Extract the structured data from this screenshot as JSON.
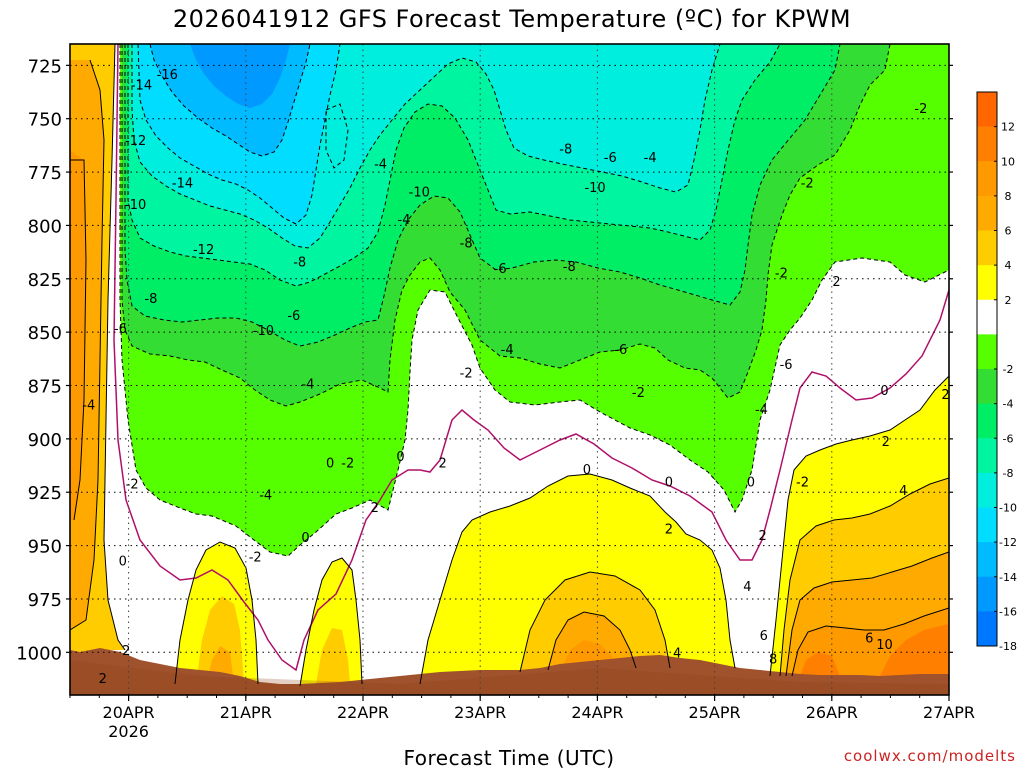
{
  "chart_data": {
    "type": "heatmap",
    "title": "2026041912 GFS Forecast Temperature (ºC) for KPWM",
    "xlabel": "Forecast Time (UTC)",
    "ylabel": "",
    "watermark": "coolwx.com/modelts",
    "x_range_days": [
      19.5,
      27.0
    ],
    "y_range_hpa": [
      715,
      1020
    ],
    "x_ticks": [
      {
        "day": 20,
        "label": "20APR",
        "sublabel": "2026"
      },
      {
        "day": 21,
        "label": "21APR",
        "sublabel": ""
      },
      {
        "day": 22,
        "label": "22APR",
        "sublabel": ""
      },
      {
        "day": 23,
        "label": "23APR",
        "sublabel": ""
      },
      {
        "day": 24,
        "label": "24APR",
        "sublabel": ""
      },
      {
        "day": 25,
        "label": "25APR",
        "sublabel": ""
      },
      {
        "day": 26,
        "label": "26APR",
        "sublabel": ""
      },
      {
        "day": 27,
        "label": "27APR",
        "sublabel": ""
      }
    ],
    "y_ticks": [
      725,
      750,
      775,
      800,
      825,
      850,
      875,
      900,
      925,
      950,
      975,
      1000
    ],
    "colorbar": {
      "labels": [
        "12",
        "10",
        "8",
        "6",
        "4",
        "2",
        "-2",
        "-4",
        "-6",
        "-8",
        "-10",
        "-12",
        "-14",
        "-16",
        "-18"
      ],
      "bands": [
        {
          "lo": 12,
          "hi": 14,
          "color": "#ff6600"
        },
        {
          "lo": 10,
          "hi": 12,
          "color": "#ff8000"
        },
        {
          "lo": 8,
          "hi": 10,
          "color": "#ff9900"
        },
        {
          "lo": 6,
          "hi": 8,
          "color": "#ffaa00"
        },
        {
          "lo": 4,
          "hi": 6,
          "color": "#ffcc00"
        },
        {
          "lo": 2,
          "hi": 4,
          "color": "#ffff00"
        },
        {
          "lo": -2,
          "hi": 2,
          "color": "#ffffff"
        },
        {
          "lo": -4,
          "hi": -2,
          "color": "#55ff00"
        },
        {
          "lo": -6,
          "hi": -4,
          "color": "#33dd33"
        },
        {
          "lo": -8,
          "hi": -6,
          "color": "#00ee66"
        },
        {
          "lo": -10,
          "hi": -8,
          "color": "#00f5a0"
        },
        {
          "lo": -12,
          "hi": -10,
          "color": "#00eedd"
        },
        {
          "lo": -14,
          "hi": -12,
          "color": "#00ddff"
        },
        {
          "lo": -16,
          "hi": -14,
          "color": "#00bbff"
        },
        {
          "lo": -18,
          "hi": -16,
          "color": "#0099ff"
        },
        {
          "lo": -20,
          "hi": -18,
          "color": "#0077ff"
        }
      ]
    },
    "contour_labels": [
      {
        "day": 19.78,
        "p": 1012,
        "v": "2"
      },
      {
        "day": 19.98,
        "p": 999,
        "v": "2"
      },
      {
        "day": 20.11,
        "p": 734,
        "v": "-14"
      },
      {
        "day": 20.33,
        "p": 729,
        "v": "-16"
      },
      {
        "day": 20.06,
        "p": 760,
        "v": "-12"
      },
      {
        "day": 20.06,
        "p": 790,
        "v": "-10"
      },
      {
        "day": 20.46,
        "p": 780,
        "v": "-14"
      },
      {
        "day": 20.64,
        "p": 811,
        "v": "-12"
      },
      {
        "day": 20.19,
        "p": 834,
        "v": "-8"
      },
      {
        "day": 19.93,
        "p": 848,
        "v": "-6"
      },
      {
        "day": 19.66,
        "p": 884,
        "v": "-4"
      },
      {
        "day": 20.03,
        "p": 921,
        "v": "-2"
      },
      {
        "day": 19.95,
        "p": 957,
        "v": "0"
      },
      {
        "day": 21.15,
        "p": 849,
        "v": "-10"
      },
      {
        "day": 21.46,
        "p": 817,
        "v": "-8"
      },
      {
        "day": 21.41,
        "p": 842,
        "v": "-6"
      },
      {
        "day": 21.53,
        "p": 874,
        "v": "-4"
      },
      {
        "day": 21.17,
        "p": 926,
        "v": "-4"
      },
      {
        "day": 21.08,
        "p": 955,
        "v": "-2"
      },
      {
        "day": 21.51,
        "p": 946,
        "v": "0"
      },
      {
        "day": 21.72,
        "p": 911,
        "v": "0"
      },
      {
        "day": 21.87,
        "p": 911,
        "v": "-2"
      },
      {
        "day": 22.15,
        "p": 771,
        "v": "-4"
      },
      {
        "day": 22.35,
        "p": 797,
        "v": "-4"
      },
      {
        "day": 22.48,
        "p": 784,
        "v": "-10"
      },
      {
        "day": 22.88,
        "p": 808,
        "v": "-8"
      },
      {
        "day": 23.17,
        "p": 820,
        "v": "-6"
      },
      {
        "day": 23.23,
        "p": 858,
        "v": "-4"
      },
      {
        "day": 22.88,
        "p": 869,
        "v": "-2"
      },
      {
        "day": 22.32,
        "p": 908,
        "v": "0"
      },
      {
        "day": 22.68,
        "p": 911,
        "v": "2"
      },
      {
        "day": 22.1,
        "p": 932,
        "v": "2"
      },
      {
        "day": 23.73,
        "p": 764,
        "v": "-8"
      },
      {
        "day": 24.11,
        "p": 768,
        "v": "-6"
      },
      {
        "day": 23.98,
        "p": 782,
        "v": "-10"
      },
      {
        "day": 23.76,
        "p": 819,
        "v": "-8"
      },
      {
        "day": 24.45,
        "p": 768,
        "v": "-4"
      },
      {
        "day": 24.2,
        "p": 858,
        "v": "-6"
      },
      {
        "day": 24.35,
        "p": 878,
        "v": "-2"
      },
      {
        "day": 23.91,
        "p": 914,
        "v": "0"
      },
      {
        "day": 24.61,
        "p": 920,
        "v": "0"
      },
      {
        "day": 24.61,
        "p": 942,
        "v": "2"
      },
      {
        "day": 25.57,
        "p": 822,
        "v": "-2"
      },
      {
        "day": 25.4,
        "p": 886,
        "v": "-4"
      },
      {
        "day": 25.61,
        "p": 865,
        "v": "-6"
      },
      {
        "day": 25.75,
        "p": 920,
        "v": "-2"
      },
      {
        "day": 25.31,
        "p": 920,
        "v": "0"
      },
      {
        "day": 25.41,
        "p": 945,
        "v": "2"
      },
      {
        "day": 25.28,
        "p": 969,
        "v": "4"
      },
      {
        "day": 25.42,
        "p": 992,
        "v": "6"
      },
      {
        "day": 25.5,
        "p": 1003,
        "v": "8"
      },
      {
        "day": 24.68,
        "p": 1000,
        "v": "4"
      },
      {
        "day": 25.79,
        "p": 780,
        "v": "-2"
      },
      {
        "day": 26.04,
        "p": 826,
        "v": "2"
      },
      {
        "day": 26.45,
        "p": 877,
        "v": "0"
      },
      {
        "day": 26.46,
        "p": 901,
        "v": "2"
      },
      {
        "day": 26.61,
        "p": 924,
        "v": "4"
      },
      {
        "day": 26.32,
        "p": 993,
        "v": "6"
      },
      {
        "day": 26.45,
        "p": 996,
        "v": "10"
      },
      {
        "day": 26.76,
        "p": 745,
        "v": "-2"
      },
      {
        "day": 26.97,
        "p": 879,
        "v": "2"
      }
    ]
  }
}
